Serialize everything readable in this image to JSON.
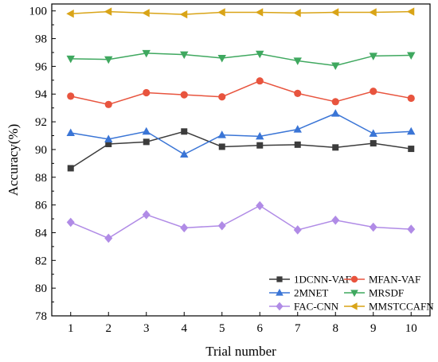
{
  "chart_data": {
    "type": "line",
    "xlabel": "Trial number",
    "ylabel": "Accuracy(%)",
    "x": [
      1,
      2,
      3,
      4,
      5,
      6,
      7,
      8,
      9,
      10
    ],
    "xlim": [
      0.5,
      10.5
    ],
    "ylim": [
      78,
      100.5
    ],
    "yticks": [
      78,
      80,
      82,
      84,
      86,
      88,
      90,
      92,
      94,
      96,
      98,
      100
    ],
    "xticks": [
      1,
      2,
      3,
      4,
      5,
      6,
      7,
      8,
      9,
      10
    ],
    "grid": false,
    "legend_position": "bottom-right",
    "series": [
      {
        "name": "1DCNN-VAF",
        "color": "#3c3c3c",
        "marker": "square",
        "values": [
          88.65,
          90.4,
          90.55,
          91.3,
          90.2,
          90.3,
          90.35,
          90.15,
          90.45,
          90.05
        ]
      },
      {
        "name": "MFAN-VAF",
        "color": "#e8543e",
        "marker": "circle",
        "values": [
          93.85,
          93.25,
          94.1,
          93.95,
          93.8,
          94.95,
          94.05,
          93.45,
          94.2,
          93.7
        ]
      },
      {
        "name": "2MNET",
        "color": "#3a75d6",
        "marker": "triangle-up",
        "values": [
          91.2,
          90.75,
          91.3,
          89.65,
          91.05,
          90.95,
          91.45,
          92.6,
          91.15,
          91.3
        ]
      },
      {
        "name": "MRSDF",
        "color": "#3fa85f",
        "marker": "triangle-down",
        "values": [
          96.55,
          96.5,
          96.95,
          96.85,
          96.6,
          96.9,
          96.4,
          96.05,
          96.75,
          96.8
        ]
      },
      {
        "name": "FAC-CNN",
        "color": "#b08be6",
        "marker": "diamond",
        "values": [
          84.75,
          83.6,
          85.3,
          84.35,
          84.5,
          85.95,
          84.2,
          84.9,
          84.4,
          84.25
        ]
      },
      {
        "name": "MMSTCCAFN",
        "color": "#d9a417",
        "marker": "triangle-left",
        "values": [
          99.8,
          99.95,
          99.85,
          99.75,
          99.9,
          99.9,
          99.85,
          99.9,
          99.9,
          99.95
        ]
      }
    ]
  }
}
